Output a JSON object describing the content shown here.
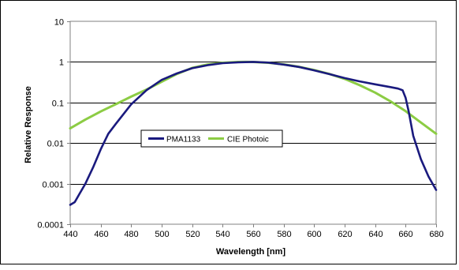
{
  "colors": {
    "PMA1133": "#1a1a7e",
    "CIE Photoic": "#8ccc44",
    "grid": "#000000",
    "frame": "#808080"
  },
  "chart_data": {
    "type": "line",
    "title": "",
    "xlabel": "Wavelength [nm]",
    "ylabel": "Relative Response",
    "xlim": [
      440,
      680
    ],
    "ylim": [
      0.0001,
      10
    ],
    "yscale": "log",
    "grid": "horizontal",
    "legend_position": "center-left",
    "x_ticks": [
      "440",
      "460",
      "480",
      "500",
      "520",
      "540",
      "560",
      "580",
      "600",
      "620",
      "640",
      "660",
      "680"
    ],
    "y_ticks": [
      "0.0001",
      "0.001",
      "0.01",
      "0.1",
      "1",
      "10"
    ],
    "series": [
      {
        "name": "PMA1133",
        "x": [
          440,
          443,
          446,
          450,
          455,
          460,
          465,
          470,
          480,
          490,
          500,
          510,
          520,
          530,
          540,
          550,
          560,
          570,
          580,
          590,
          600,
          610,
          620,
          630,
          640,
          650,
          655,
          658,
          660,
          662,
          665,
          670,
          675,
          680
        ],
        "y": [
          0.0003,
          0.00035,
          0.00055,
          0.001,
          0.0025,
          0.007,
          0.017,
          0.03,
          0.09,
          0.2,
          0.36,
          0.52,
          0.7,
          0.83,
          0.93,
          0.98,
          1.0,
          0.96,
          0.86,
          0.75,
          0.62,
          0.5,
          0.4,
          0.33,
          0.28,
          0.24,
          0.22,
          0.2,
          0.13,
          0.06,
          0.015,
          0.004,
          0.0015,
          0.0007
        ]
      },
      {
        "name": "CIE Photoic",
        "x": [
          440,
          450,
          460,
          470,
          480,
          490,
          500,
          510,
          520,
          530,
          540,
          550,
          555,
          560,
          570,
          580,
          590,
          600,
          610,
          620,
          630,
          640,
          650,
          660,
          670,
          680
        ],
        "y": [
          0.023,
          0.038,
          0.06,
          0.091,
          0.139,
          0.208,
          0.323,
          0.503,
          0.71,
          0.862,
          0.954,
          0.995,
          1.0,
          0.995,
          0.952,
          0.87,
          0.757,
          0.631,
          0.503,
          0.381,
          0.265,
          0.175,
          0.107,
          0.061,
          0.032,
          0.017
        ]
      }
    ]
  }
}
